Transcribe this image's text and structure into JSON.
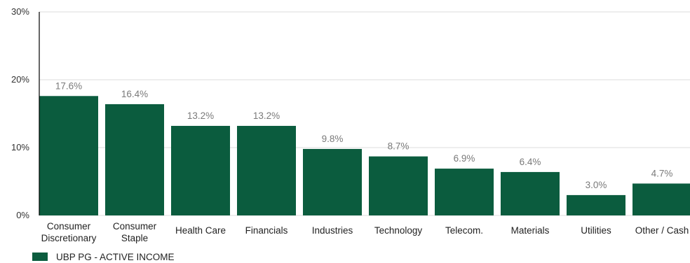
{
  "chart_data": {
    "type": "bar",
    "categories": [
      [
        "Consumer",
        "Discretionary"
      ],
      [
        "Consumer",
        "Staple"
      ],
      [
        "Health Care"
      ],
      [
        "Financials"
      ],
      [
        "Industries"
      ],
      [
        "Technology"
      ],
      [
        "Telecom."
      ],
      [
        "Materials"
      ],
      [
        "Utilities"
      ],
      [
        "Other / Cash"
      ]
    ],
    "series": [
      {
        "name": "UBP PG - ACTIVE INCOME",
        "values": [
          17.6,
          16.4,
          13.2,
          13.2,
          9.8,
          8.7,
          6.9,
          6.4,
          3.0,
          4.7
        ],
        "labels": [
          "17.6%",
          "16.4%",
          "13.2%",
          "13.2%",
          "9.8%",
          "8.7%",
          "6.9%",
          "6.4%",
          "3.0%",
          "4.7%"
        ]
      }
    ],
    "yticks": [
      {
        "value": 0,
        "label": "0%"
      },
      {
        "value": 10,
        "label": "10%"
      },
      {
        "value": 20,
        "label": "20%"
      },
      {
        "value": 30,
        "label": "30%"
      }
    ],
    "ylim": [
      0,
      30
    ],
    "grid": true,
    "legend_position": "bottom-left",
    "colors": {
      "bar": "#0b5c3e",
      "grid": "#dddddd",
      "axis": "#000000",
      "data_label": "#7a7a7a"
    }
  }
}
